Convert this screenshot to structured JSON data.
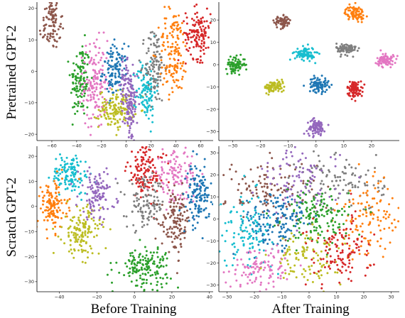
{
  "columns": [
    "Before Training",
    "After Training"
  ],
  "rows": [
    "Pretrained GPT-2",
    "Scratch GPT-2"
  ],
  "palette": {
    "blue": "#1f77b4",
    "orange": "#ff7f0e",
    "green": "#2ca02c",
    "red": "#d62728",
    "purple": "#9467bd",
    "brown": "#8c564b",
    "pink": "#e377c2",
    "gray": "#7f7f7f",
    "olive": "#bcbd22",
    "cyan": "#17becf"
  },
  "chart_data": [
    {
      "type": "scatter",
      "row": 0,
      "col": 0,
      "xlim": [
        -72,
        70
      ],
      "ylim": [
        -22,
        22
      ],
      "xticks": [
        -60,
        -40,
        -20,
        0,
        20,
        40,
        60
      ],
      "yticks": [
        -20,
        -10,
        0,
        10,
        20
      ],
      "clusters": [
        {
          "color": "brown",
          "points": [
            [
              -60,
              19,
              3,
              2,
              40
            ],
            [
              -60,
              13,
              5,
              3,
              60
            ]
          ]
        },
        {
          "color": "green",
          "points": [
            [
              -37,
              -3,
              4,
              6,
              130
            ]
          ]
        },
        {
          "color": "pink",
          "points": [
            [
              -25,
              -4,
              5,
              7,
              150
            ]
          ]
        },
        {
          "color": "blue",
          "points": [
            [
              -9,
              0,
              5,
              4,
              120
            ]
          ]
        },
        {
          "color": "olive",
          "points": [
            [
              -8,
              -12,
              7,
              3,
              140
            ]
          ]
        },
        {
          "color": "purple",
          "points": [
            [
              3,
              -11,
              3,
              6,
              120
            ],
            [
              -1,
              -3,
              2,
              3,
              30
            ]
          ]
        },
        {
          "color": "cyan",
          "points": [
            [
              16,
              -6,
              4,
              5,
              110
            ]
          ]
        },
        {
          "color": "gray",
          "points": [
            [
              23,
              2,
              4,
              6,
              110
            ]
          ]
        },
        {
          "color": "orange",
          "points": [
            [
              38,
              6,
              6,
              7,
              140
            ]
          ]
        },
        {
          "color": "red",
          "points": [
            [
              58,
              12,
              5,
              4,
              130
            ]
          ]
        }
      ]
    },
    {
      "type": "scatter",
      "row": 0,
      "col": 1,
      "xlim": [
        -35,
        30
      ],
      "ylim": [
        -34,
        28
      ],
      "xticks": [
        -30,
        -20,
        -10,
        0,
        10,
        20
      ],
      "yticks": [
        -30,
        -20,
        -10,
        0,
        10,
        20
      ],
      "clusters": [
        {
          "color": "green",
          "points": [
            [
              -29,
              0,
              1.7,
              1.7,
              90
            ]
          ]
        },
        {
          "color": "brown",
          "points": [
            [
              -12,
              19,
              1.5,
              1.3,
              80
            ]
          ]
        },
        {
          "color": "cyan",
          "points": [
            [
              -4,
              5,
              1.8,
              1.5,
              90
            ]
          ]
        },
        {
          "color": "olive",
          "points": [
            [
              -15,
              -10,
              1.8,
              1.3,
              90
            ]
          ]
        },
        {
          "color": "blue",
          "points": [
            [
              1,
              -9,
              1.8,
              1.7,
              90
            ]
          ]
        },
        {
          "color": "orange",
          "points": [
            [
              14,
              23,
              1.7,
              1.6,
              90
            ]
          ]
        },
        {
          "color": "gray",
          "points": [
            [
              11,
              7,
              1.8,
              1.3,
              90
            ]
          ]
        },
        {
          "color": "pink",
          "points": [
            [
              25,
              2,
              1.5,
              1.6,
              80
            ]
          ]
        },
        {
          "color": "red",
          "points": [
            [
              14,
              -11,
              1.4,
              1.8,
              90
            ]
          ]
        },
        {
          "color": "purple",
          "points": [
            [
              0,
              -28,
              1.6,
              1.7,
              90
            ]
          ]
        }
      ]
    },
    {
      "type": "scatter",
      "row": 1,
      "col": 0,
      "xlim": [
        -52,
        42
      ],
      "ylim": [
        -34,
        24
      ],
      "xticks": [
        -40,
        -20,
        0,
        20,
        40
      ],
      "yticks": [
        -30,
        -20,
        -10,
        0,
        10,
        20
      ],
      "clusters": [
        {
          "color": "cyan",
          "points": [
            [
              -34,
              13,
              5,
              4,
              130
            ]
          ]
        },
        {
          "color": "orange",
          "points": [
            [
              -44,
              0,
              4,
              5,
              130
            ]
          ]
        },
        {
          "color": "olive",
          "points": [
            [
              -28,
              -10,
              5,
              5,
              140
            ]
          ]
        },
        {
          "color": "purple",
          "points": [
            [
              -20,
              5,
              5,
              5,
              110
            ]
          ]
        },
        {
          "color": "red",
          "points": [
            [
              6,
              14,
              5,
              6,
              130
            ]
          ]
        },
        {
          "color": "pink",
          "points": [
            [
              22,
              12,
              6,
              5,
              120
            ]
          ]
        },
        {
          "color": "gray",
          "points": [
            [
              6,
              1,
              5,
              5,
              110
            ]
          ]
        },
        {
          "color": "brown",
          "points": [
            [
              22,
              -6,
              4,
              6,
              130
            ]
          ]
        },
        {
          "color": "blue",
          "points": [
            [
              34,
              4,
              3,
              6,
              130
            ]
          ]
        },
        {
          "color": "green",
          "points": [
            [
              5,
              -24,
              7,
              4,
              160
            ]
          ]
        }
      ]
    },
    {
      "type": "scatter",
      "row": 1,
      "col": 1,
      "xlim": [
        -33,
        33
      ],
      "ylim": [
        -33,
        33
      ],
      "xticks": [
        -30,
        -20,
        -10,
        0,
        10,
        20,
        30
      ],
      "yticks": [
        -30,
        -20,
        -10,
        0,
        10,
        20,
        30
      ],
      "clusters": [
        {
          "color": "brown",
          "points": [
            [
              -14,
              13,
              8,
              7,
              120
            ]
          ]
        },
        {
          "color": "gray",
          "points": [
            [
              12,
              17,
              8,
              7,
              110
            ]
          ]
        },
        {
          "color": "purple",
          "points": [
            [
              -3,
              16,
              7,
              8,
              100
            ]
          ]
        },
        {
          "color": "orange",
          "points": [
            [
              22,
              0,
              6,
              9,
              120
            ]
          ]
        },
        {
          "color": "green",
          "points": [
            [
              3,
              1,
              6,
              6,
              150
            ]
          ]
        },
        {
          "color": "blue",
          "points": [
            [
              -12,
              -2,
              6,
              7,
              150
            ]
          ]
        },
        {
          "color": "cyan",
          "points": [
            [
              -23,
              -5,
              5,
              8,
              110
            ]
          ]
        },
        {
          "color": "pink",
          "points": [
            [
              -17,
              -22,
              6,
              5,
              110
            ]
          ]
        },
        {
          "color": "olive",
          "points": [
            [
              0,
              -18,
              6,
              6,
              110
            ]
          ]
        },
        {
          "color": "red",
          "points": [
            [
              11,
              -15,
              6,
              8,
              120
            ]
          ]
        }
      ]
    }
  ]
}
